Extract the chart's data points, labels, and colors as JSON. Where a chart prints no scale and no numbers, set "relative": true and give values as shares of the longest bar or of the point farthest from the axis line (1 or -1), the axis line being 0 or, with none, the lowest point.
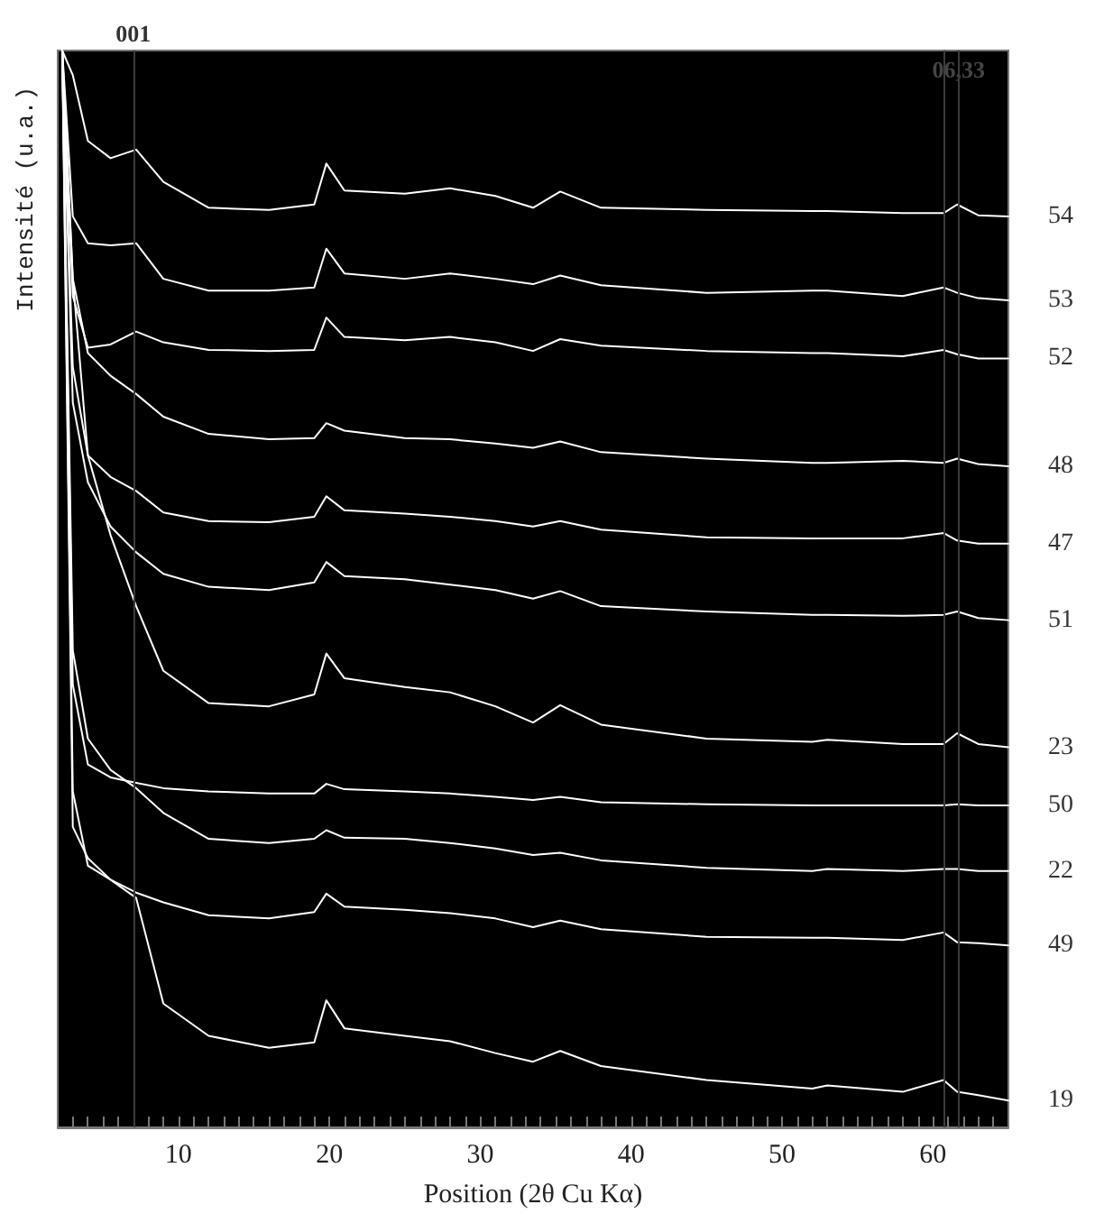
{
  "chart_data": {
    "type": "line",
    "relative": true,
    "xlabel": "Position (2θ Cu Kα)",
    "ylabel": "Intensité (u.a.)",
    "tick_labels": "x",
    "marker": "none",
    "line_style": "solid",
    "xlim": [
      2,
      65
    ],
    "xticks": [
      {
        "value": 3,
        "label": null
      },
      {
        "value": 4,
        "label": null
      },
      {
        "value": 5,
        "label": null
      },
      {
        "value": 6,
        "label": null
      },
      {
        "value": 7,
        "label": null
      },
      {
        "value": 8,
        "label": null
      },
      {
        "value": 9,
        "label": null
      },
      10,
      {
        "value": 11,
        "label": null
      },
      {
        "value": 12,
        "label": null
      },
      {
        "value": 13,
        "label": null
      },
      {
        "value": 14,
        "label": null
      },
      {
        "value": 15,
        "label": null
      },
      {
        "value": 16,
        "label": null
      },
      {
        "value": 17,
        "label": null
      },
      {
        "value": 18,
        "label": null
      },
      {
        "value": 19,
        "label": null
      },
      20,
      {
        "value": 21,
        "label": null
      },
      {
        "value": 22,
        "label": null
      },
      {
        "value": 23,
        "label": null
      },
      {
        "value": 24,
        "label": null
      },
      {
        "value": 25,
        "label": null
      },
      {
        "value": 26,
        "label": null
      },
      {
        "value": 27,
        "label": null
      },
      {
        "value": 28,
        "label": null
      },
      {
        "value": 29,
        "label": null
      },
      30,
      {
        "value": 31,
        "label": null
      },
      {
        "value": 32,
        "label": null
      },
      {
        "value": 33,
        "label": null
      },
      {
        "value": 34,
        "label": null
      },
      {
        "value": 35,
        "label": null
      },
      {
        "value": 36,
        "label": null
      },
      {
        "value": 37,
        "label": null
      },
      {
        "value": 38,
        "label": null
      },
      {
        "value": 39,
        "label": null
      },
      40,
      {
        "value": 41,
        "label": null
      },
      {
        "value": 42,
        "label": null
      },
      {
        "value": 43,
        "label": null
      },
      {
        "value": 44,
        "label": null
      },
      {
        "value": 45,
        "label": null
      },
      {
        "value": 46,
        "label": null
      },
      {
        "value": 47,
        "label": null
      },
      {
        "value": 48,
        "label": null
      },
      {
        "value": 49,
        "label": null
      },
      50,
      {
        "value": 51,
        "label": null
      },
      {
        "value": 52,
        "label": null
      },
      {
        "value": 53,
        "label": null
      },
      {
        "value": 54,
        "label": null
      },
      {
        "value": 55,
        "label": null
      },
      {
        "value": 56,
        "label": null
      },
      {
        "value": 57,
        "label": null
      },
      {
        "value": 58,
        "label": null
      },
      {
        "value": 59,
        "label": null
      },
      60,
      {
        "value": 61,
        "label": null
      },
      {
        "value": 62,
        "label": null
      },
      {
        "value": 63,
        "label": null
      },
      {
        "value": 64,
        "label": null
      }
    ],
    "x": [
      2.3,
      3,
      4,
      5.5,
      7.2,
      9,
      12,
      16,
      19,
      19.8,
      21,
      25,
      28,
      31,
      33.5,
      35.3,
      38,
      45,
      52,
      53,
      58,
      60.7,
      61.6,
      63,
      65
    ],
    "series": [
      {
        "name": "54",
        "color": "#ffffff",
        "values": [
          1,
          0.977,
          0.916,
          0.9,
          0.908,
          0.878,
          0.854,
          0.852,
          0.857,
          0.895,
          0.87,
          0.867,
          0.872,
          0.865,
          0.854,
          0.869,
          0.854,
          0.852,
          0.851,
          0.851,
          0.849,
          0.849,
          0.857,
          0.847,
          0.846
        ]
      },
      {
        "name": "53",
        "color": "#ffffff",
        "values": [
          1,
          0.846,
          0.821,
          0.819,
          0.821,
          0.788,
          0.777,
          0.777,
          0.78,
          0.816,
          0.793,
          0.788,
          0.793,
          0.788,
          0.783,
          0.791,
          0.782,
          0.775,
          0.777,
          0.777,
          0.772,
          0.78,
          0.775,
          0.77,
          0.768
        ]
      },
      {
        "name": "52",
        "color": "#ffffff",
        "values": [
          1,
          0.772,
          0.724,
          0.727,
          0.739,
          0.729,
          0.722,
          0.721,
          0.722,
          0.752,
          0.734,
          0.731,
          0.734,
          0.729,
          0.721,
          0.732,
          0.726,
          0.721,
          0.719,
          0.719,
          0.716,
          0.722,
          0.718,
          0.714,
          0.714
        ]
      },
      {
        "name": "48",
        "color": "#ffffff",
        "values": [
          1,
          0.788,
          0.719,
          0.698,
          0.681,
          0.66,
          0.644,
          0.639,
          0.64,
          0.654,
          0.647,
          0.64,
          0.639,
          0.635,
          0.631,
          0.637,
          0.627,
          0.621,
          0.617,
          0.617,
          0.619,
          0.617,
          0.621,
          0.616,
          0.614
        ]
      },
      {
        "name": "47",
        "color": "#ffffff",
        "values": [
          1,
          0.706,
          0.624,
          0.604,
          0.591,
          0.571,
          0.563,
          0.562,
          0.567,
          0.586,
          0.573,
          0.57,
          0.567,
          0.563,
          0.558,
          0.563,
          0.555,
          0.548,
          0.547,
          0.547,
          0.547,
          0.552,
          0.545,
          0.542,
          0.542
        ]
      },
      {
        "name": "51",
        "color": "#ffffff",
        "values": [
          1,
          0.673,
          0.599,
          0.558,
          0.534,
          0.514,
          0.502,
          0.499,
          0.506,
          0.525,
          0.512,
          0.509,
          0.504,
          0.499,
          0.491,
          0.498,
          0.484,
          0.479,
          0.476,
          0.476,
          0.475,
          0.476,
          0.479,
          0.473,
          0.471
        ]
      },
      {
        "name": "23",
        "color": "#ffffff",
        "values": [
          1,
          0.788,
          0.624,
          0.55,
          0.484,
          0.424,
          0.394,
          0.391,
          0.402,
          0.44,
          0.417,
          0.409,
          0.404,
          0.391,
          0.376,
          0.392,
          0.374,
          0.361,
          0.358,
          0.36,
          0.356,
          0.356,
          0.366,
          0.356,
          0.353
        ]
      },
      {
        "name": "50",
        "color": "#ffffff",
        "values": [
          1,
          0.411,
          0.337,
          0.325,
          0.32,
          0.315,
          0.312,
          0.31,
          0.31,
          0.319,
          0.314,
          0.312,
          0.31,
          0.307,
          0.304,
          0.307,
          0.302,
          0.3,
          0.299,
          0.299,
          0.299,
          0.299,
          0.3,
          0.299,
          0.299
        ]
      },
      {
        "name": "22",
        "color": "#ffffff",
        "values": [
          1,
          0.443,
          0.361,
          0.332,
          0.315,
          0.292,
          0.268,
          0.264,
          0.268,
          0.276,
          0.269,
          0.268,
          0.264,
          0.259,
          0.253,
          0.255,
          0.248,
          0.241,
          0.238,
          0.24,
          0.238,
          0.24,
          0.24,
          0.238,
          0.238
        ]
      },
      {
        "name": "49",
        "color": "#ffffff",
        "values": [
          1,
          0.279,
          0.25,
          0.23,
          0.218,
          0.209,
          0.197,
          0.194,
          0.2,
          0.217,
          0.205,
          0.202,
          0.199,
          0.194,
          0.186,
          0.192,
          0.184,
          0.177,
          0.176,
          0.176,
          0.174,
          0.181,
          0.172,
          0.171,
          0.169
        ]
      },
      {
        "name": "19",
        "color": "#ffffff",
        "values": [
          1,
          0.312,
          0.243,
          0.23,
          0.213,
          0.115,
          0.085,
          0.074,
          0.079,
          0.118,
          0.092,
          0.085,
          0.08,
          0.069,
          0.061,
          0.071,
          0.057,
          0.044,
          0.036,
          0.039,
          0.033,
          0.044,
          0.033,
          0.03,
          0.025
        ]
      }
    ],
    "ref_lines": [
      {
        "axis": "x",
        "value": 7,
        "color": "#3c3c3c"
      },
      {
        "axis": "x",
        "value": 60.7,
        "color": "#3c3c3c"
      },
      {
        "axis": "x",
        "value": 61.7,
        "color": "#3c3c3c"
      }
    ],
    "annotations": [
      "001",
      "06,33"
    ]
  }
}
